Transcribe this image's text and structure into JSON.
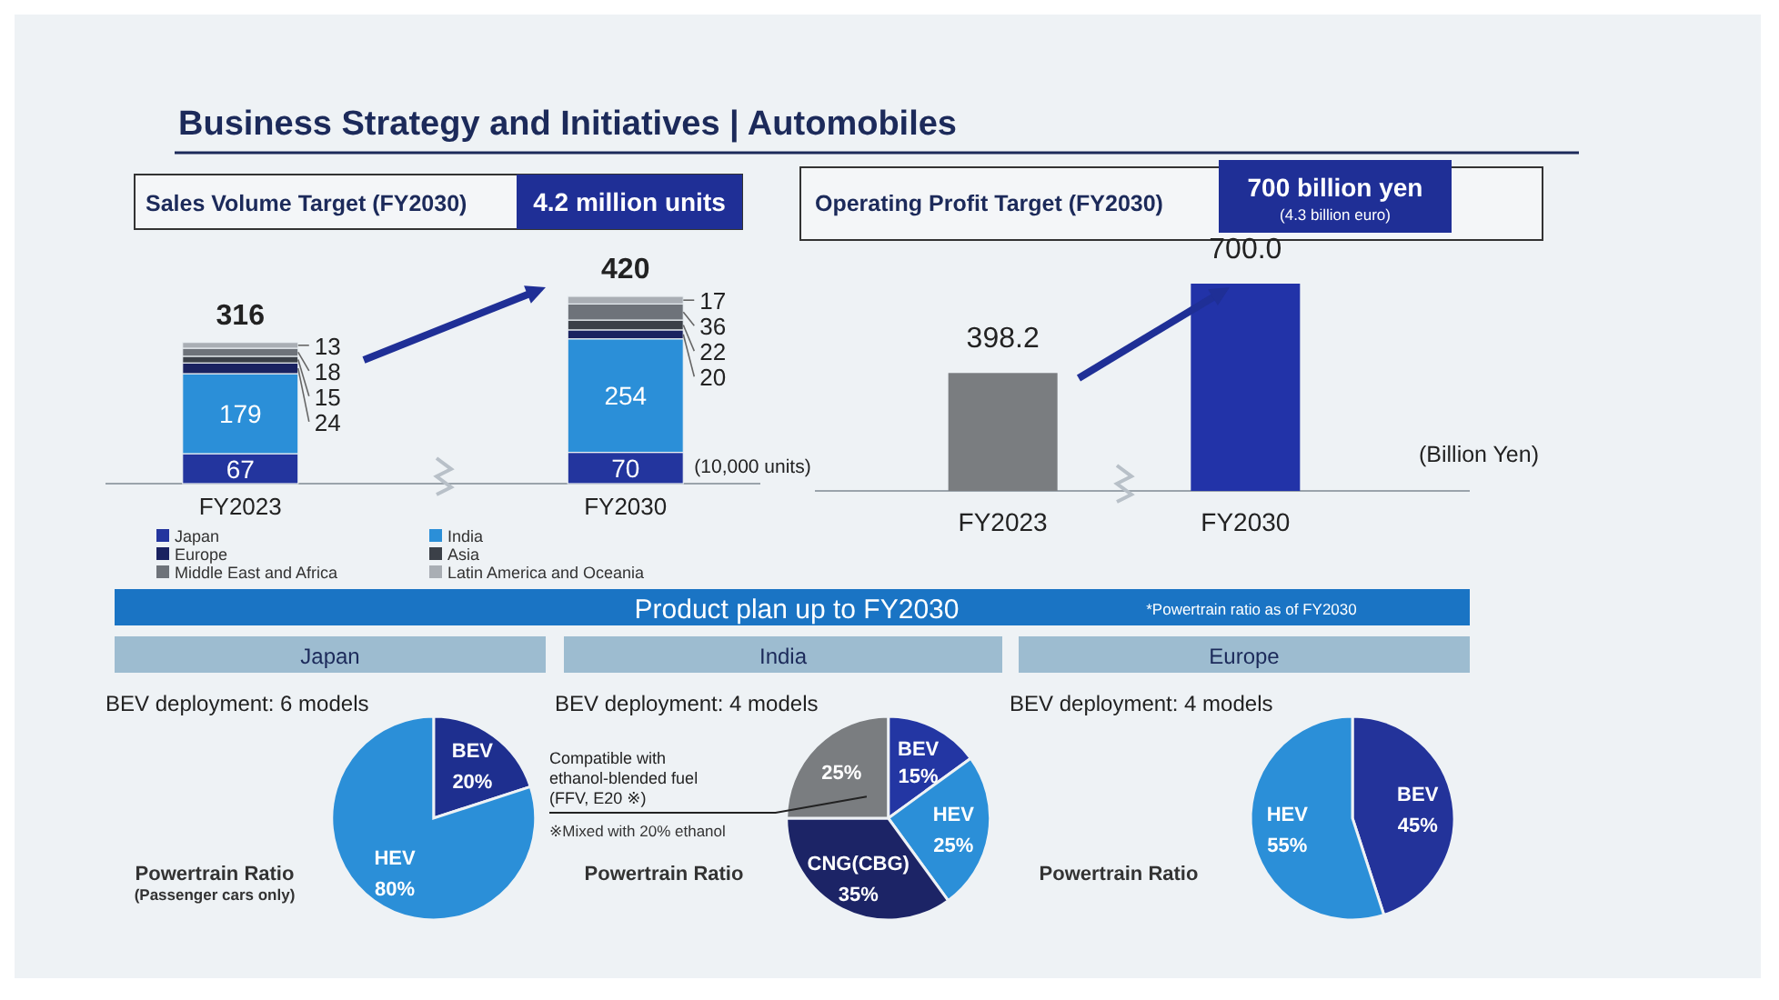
{
  "chart_data": [
    {
      "type": "bar",
      "stacked": true,
      "title": "Business Strategy and Initiatives | Automobiles",
      "subtitle": "Sales Volume Target (FY2030)",
      "categories": [
        "FY2023",
        "FY2030"
      ],
      "series": [
        {
          "name": "Japan",
          "color": "#23359e",
          "values": [
            67,
            70
          ]
        },
        {
          "name": "India",
          "color": "#2b8fd8",
          "values": [
            179,
            254
          ]
        },
        {
          "name": "Europe",
          "color": "#1a2260",
          "values": [
            24,
            20
          ]
        },
        {
          "name": "Asia",
          "color": "#3b4048",
          "values": [
            15,
            22
          ]
        },
        {
          "name": "Middle East and Africa",
          "color": "#6e737a",
          "values": [
            18,
            36
          ]
        },
        {
          "name": "Latin America and Oceania",
          "color": "#a9aeb4",
          "values": [
            13,
            17
          ]
        }
      ],
      "data_labels": true,
      "totals": [
        "316",
        "420"
      ],
      "legend": "bottom",
      "annotations": [
        "4.2 million units",
        "(10,000 units)"
      ]
    },
    {
      "type": "bar",
      "title": "Operating Profit Target (FY2030)",
      "categories": [
        "FY2023",
        "FY2030"
      ],
      "values": [
        398.2,
        700
      ],
      "colors": [
        "#7a7d80",
        "#2233a8"
      ],
      "value_labels": [
        "398.2",
        "700.0"
      ],
      "annotations": [
        "700 billion yen",
        "(4.3 billion euro)",
        "(Billion Yen)"
      ]
    },
    {
      "type": "pie",
      "title": "Japan",
      "subtitle": "BEV deployment: 6 models",
      "categories": [
        "BEV",
        "HEV"
      ],
      "values": [
        20,
        80
      ],
      "colors": [
        "#1e2f8f",
        "#2b8fd8"
      ],
      "value_labels": [
        "20%",
        "80%"
      ],
      "annotations": [
        "Product plan up to FY2030",
        "*Powertrain ratio as of FY2030",
        "Powertrain Ratio",
        "(Passenger cars only)"
      ]
    },
    {
      "type": "pie",
      "title": "India",
      "subtitle": "BEV deployment: 4 models",
      "categories": [
        "BEV",
        "HEV",
        "CNG(CBG)",
        "Compatible with ethanol-blended fuel (FFV, E20 ※)"
      ],
      "values": [
        15,
        25,
        35,
        25
      ],
      "colors": [
        "#2336a3",
        "#2b8fd8",
        "#1c2466",
        "#7a7d80"
      ],
      "value_labels": [
        "15%",
        "25%",
        "35%",
        "25%"
      ],
      "annotations": [
        "※Mixed with 20% ethanol",
        "Powertrain Ratio"
      ]
    },
    {
      "type": "pie",
      "title": "Europe",
      "subtitle": "BEV deployment: 4 models",
      "categories": [
        "BEV",
        "HEV"
      ],
      "values": [
        45,
        55
      ],
      "colors": [
        "#23339a",
        "#2b8fd8"
      ],
      "value_labels": [
        "45%",
        "55%"
      ],
      "annotations": [
        "Powertrain Ratio"
      ]
    }
  ]
}
